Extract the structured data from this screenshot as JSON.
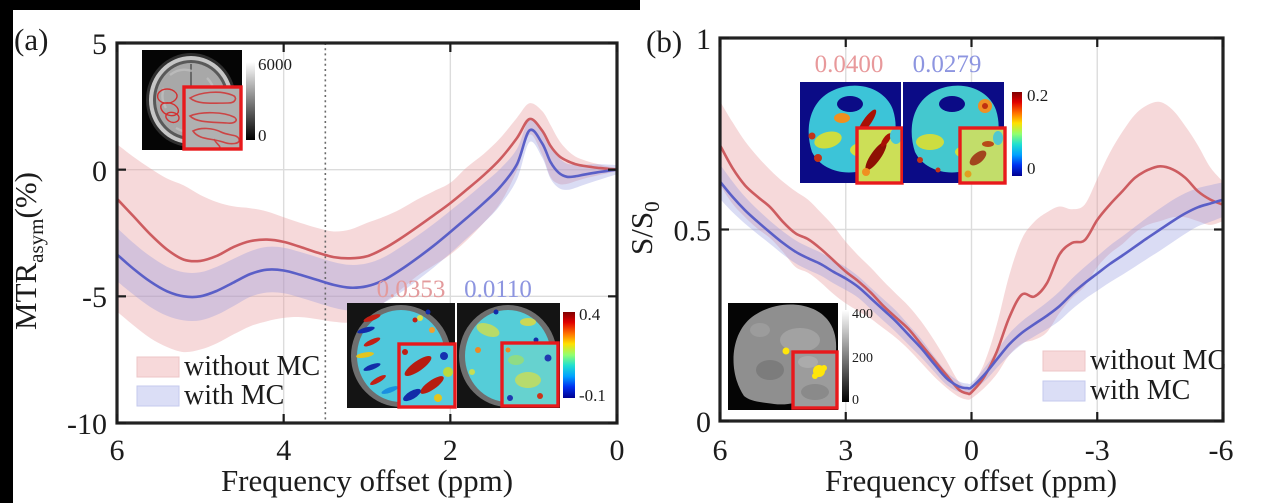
{
  "window": {
    "edge_color": "#000000",
    "background": "#ffffff"
  },
  "chart_data": [
    {
      "type": "line",
      "panel": "a",
      "panel_label": "(a)",
      "xlabel": "Frequency offset (ppm)",
      "ylabel_parts": [
        "MTR",
        "asym",
        "(%)"
      ],
      "x_axis_reversed": true,
      "xlim": [
        6,
        0
      ],
      "ylim": [
        -10,
        5
      ],
      "xticks": [
        6,
        4,
        2,
        0
      ],
      "x_tick_labels": [
        "6",
        "4",
        "2",
        "0"
      ],
      "yticks": [
        5,
        0,
        -5,
        -10
      ],
      "y_tick_labels": [
        "5",
        "0",
        "-5",
        "-10"
      ],
      "grid_x": [
        4,
        2
      ],
      "grid_y": [
        0,
        -5
      ],
      "vline_x": 3.5,
      "legend_position": "bottom-left",
      "series": [
        {
          "name": "without MC",
          "line_color": "#cd5c60",
          "band_color": "#e89c9e",
          "band_opacity": 0.38,
          "x": [
            6,
            5.8,
            5.6,
            5.4,
            5.2,
            5,
            4.8,
            4.6,
            4.4,
            4.2,
            4,
            3.8,
            3.6,
            3.4,
            3.2,
            3,
            2.8,
            2.6,
            2.4,
            2.2,
            2,
            1.8,
            1.6,
            1.4,
            1.2,
            1.05,
            0.9,
            0.8,
            0.7,
            0.6,
            0.5,
            0.4,
            0.3,
            0.2,
            0.1,
            0
          ],
          "mean": [
            -1.15,
            -1.85,
            -2.55,
            -3.15,
            -3.55,
            -3.6,
            -3.4,
            -3.05,
            -2.82,
            -2.76,
            -2.85,
            -3.05,
            -3.27,
            -3.45,
            -3.5,
            -3.42,
            -3.12,
            -2.72,
            -2.27,
            -1.8,
            -1.32,
            -0.78,
            -0.22,
            0.42,
            1.25,
            2.0,
            1.55,
            0.95,
            0.55,
            0.35,
            0.22,
            0.15,
            0.1,
            0.06,
            0.03,
            0.01
          ],
          "hi": [
            1.0,
            0.5,
            0.05,
            -0.35,
            -0.62,
            -1.0,
            -1.28,
            -1.45,
            -1.52,
            -1.65,
            -1.88,
            -2.1,
            -2.3,
            -2.44,
            -2.36,
            -2.1,
            -1.86,
            -1.56,
            -1.18,
            -0.85,
            -0.52,
            0.1,
            0.62,
            1.25,
            2.05,
            2.62,
            2.32,
            1.78,
            1.18,
            0.78,
            0.52,
            0.38,
            0.28,
            0.2,
            0.12,
            0.08
          ],
          "lo": [
            -5.6,
            -6.15,
            -6.65,
            -7.0,
            -7.2,
            -7.1,
            -6.85,
            -6.5,
            -6.18,
            -5.98,
            -5.85,
            -5.82,
            -5.9,
            -6.0,
            -6.02,
            -5.72,
            -5.25,
            -4.75,
            -4.2,
            -3.78,
            -3.35,
            -2.78,
            -2.1,
            -1.32,
            -0.02,
            1.38,
            0.6,
            -0.28,
            -0.56,
            -0.56,
            -0.46,
            -0.36,
            -0.28,
            -0.2,
            -0.13,
            -0.06
          ]
        },
        {
          "name": "with MC",
          "line_color": "#5a5fc7",
          "band_color": "#8c92dd",
          "band_opacity": 0.32,
          "x": [
            6,
            5.8,
            5.6,
            5.4,
            5.2,
            5,
            4.8,
            4.6,
            4.4,
            4.2,
            4,
            3.8,
            3.6,
            3.4,
            3.2,
            3,
            2.8,
            2.6,
            2.4,
            2.2,
            2,
            1.8,
            1.6,
            1.4,
            1.2,
            1.05,
            0.9,
            0.8,
            0.7,
            0.6,
            0.5,
            0.4,
            0.3,
            0.2,
            0.1,
            0
          ],
          "mean": [
            -3.35,
            -3.92,
            -4.42,
            -4.8,
            -5.0,
            -5.0,
            -4.78,
            -4.45,
            -4.12,
            -3.95,
            -3.98,
            -4.15,
            -4.35,
            -4.55,
            -4.66,
            -4.6,
            -4.36,
            -3.96,
            -3.5,
            -3.0,
            -2.46,
            -1.9,
            -1.32,
            -0.68,
            0.22,
            1.55,
            1.05,
            0.32,
            -0.12,
            -0.28,
            -0.26,
            -0.2,
            -0.14,
            -0.09,
            -0.04,
            0
          ],
          "hi": [
            -2.3,
            -2.9,
            -3.42,
            -3.83,
            -4.05,
            -4.05,
            -3.83,
            -3.52,
            -3.22,
            -3.05,
            -3.08,
            -3.25,
            -3.45,
            -3.65,
            -3.76,
            -3.7,
            -3.46,
            -3.06,
            -2.62,
            -2.14,
            -1.62,
            -1.1,
            -0.54,
            0.04,
            0.82,
            2.01,
            1.61,
            0.98,
            0.48,
            0.24,
            0.2,
            0.2,
            0.21,
            0.21,
            0.2,
            0.18
          ],
          "lo": [
            -4.4,
            -4.94,
            -5.42,
            -5.77,
            -5.95,
            -5.95,
            -5.73,
            -5.38,
            -5.02,
            -4.85,
            -4.88,
            -5.05,
            -5.25,
            -5.45,
            -5.56,
            -5.5,
            -5.26,
            -4.86,
            -4.38,
            -3.86,
            -3.3,
            -2.7,
            -2.1,
            -1.4,
            -0.38,
            1.09,
            0.49,
            -0.34,
            -0.72,
            -0.8,
            -0.72,
            -0.6,
            -0.49,
            -0.39,
            -0.28,
            -0.18
          ]
        }
      ],
      "annotations": [
        {
          "text": "0.0353",
          "color": "#e39a9c"
        },
        {
          "text": "0.0110",
          "color": "#8d95e0"
        }
      ],
      "insets": {
        "anatomy_colorbar": {
          "top": "6000",
          "bottom": "0"
        },
        "map_colorbar": {
          "top": "0.4",
          "bottom": "-0.1"
        }
      }
    },
    {
      "type": "line",
      "panel": "b",
      "panel_label": "(b)",
      "xlabel": "Frequency offset (ppm)",
      "ylabel_parts": [
        "S/S",
        "0"
      ],
      "x_axis_reversed": true,
      "xlim": [
        6,
        -6
      ],
      "ylim": [
        0,
        1
      ],
      "xticks": [
        6,
        3,
        0,
        -3,
        -6
      ],
      "x_tick_labels": [
        "6",
        "3",
        "0",
        "-3",
        "-6"
      ],
      "yticks": [
        1,
        0.5,
        0
      ],
      "y_tick_labels": [
        "1",
        "0.5",
        "0"
      ],
      "grid_x": [
        3,
        0,
        -3
      ],
      "grid_y": [
        0.5
      ],
      "vline_x": null,
      "legend_position": "bottom-right",
      "series": [
        {
          "name": "without MC",
          "line_color": "#cd5c60",
          "band_color": "#e89c9e",
          "band_opacity": 0.38,
          "x": [
            6,
            5.7,
            5.4,
            5.1,
            4.8,
            4.5,
            4.2,
            3.9,
            3.6,
            3.3,
            3,
            2.7,
            2.4,
            2.1,
            1.8,
            1.5,
            1.2,
            0.9,
            0.6,
            0.3,
            0.1,
            0,
            -0.3,
            -0.6,
            -0.9,
            -1.2,
            -1.5,
            -1.8,
            -2.1,
            -2.4,
            -2.7,
            -3,
            -3.3,
            -3.6,
            -3.9,
            -4.2,
            -4.5,
            -4.8,
            -5.1,
            -5.4,
            -5.7,
            -6
          ],
          "mean": [
            0.72,
            0.66,
            0.615,
            0.585,
            0.558,
            0.52,
            0.49,
            0.475,
            0.45,
            0.42,
            0.39,
            0.365,
            0.335,
            0.3,
            0.27,
            0.24,
            0.2,
            0.16,
            0.12,
            0.082,
            0.072,
            0.075,
            0.115,
            0.18,
            0.27,
            0.33,
            0.325,
            0.36,
            0.435,
            0.465,
            0.472,
            0.525,
            0.565,
            0.6,
            0.635,
            0.655,
            0.665,
            0.657,
            0.635,
            0.6,
            0.578,
            0.565
          ],
          "hi": [
            0.835,
            0.78,
            0.73,
            0.69,
            0.655,
            0.625,
            0.6,
            0.578,
            0.545,
            0.51,
            0.468,
            0.432,
            0.4,
            0.365,
            0.332,
            0.3,
            0.26,
            0.212,
            0.158,
            0.102,
            0.087,
            0.09,
            0.15,
            0.25,
            0.38,
            0.475,
            0.52,
            0.545,
            0.56,
            0.553,
            0.565,
            0.632,
            0.7,
            0.755,
            0.8,
            0.825,
            0.833,
            0.812,
            0.77,
            0.72,
            0.662,
            0.625
          ],
          "lo": [
            0.617,
            0.567,
            0.532,
            0.502,
            0.477,
            0.442,
            0.402,
            0.387,
            0.362,
            0.332,
            0.307,
            0.287,
            0.267,
            0.242,
            0.217,
            0.187,
            0.152,
            0.117,
            0.087,
            0.063,
            0.056,
            0.059,
            0.086,
            0.122,
            0.172,
            0.202,
            0.212,
            0.232,
            0.282,
            0.322,
            0.352,
            0.402,
            0.437,
            0.462,
            0.492,
            0.512,
            0.522,
            0.532,
            0.532,
            0.522,
            0.512,
            0.522
          ]
        },
        {
          "name": "with MC",
          "line_color": "#5a5fc7",
          "band_color": "#8c92dd",
          "band_opacity": 0.32,
          "x": [
            6,
            5.7,
            5.4,
            5.1,
            4.8,
            4.5,
            4.2,
            3.9,
            3.6,
            3.3,
            3,
            2.7,
            2.4,
            2.1,
            1.8,
            1.5,
            1.2,
            0.9,
            0.6,
            0.3,
            0.1,
            0,
            -0.3,
            -0.6,
            -0.9,
            -1.2,
            -1.5,
            -1.8,
            -2.1,
            -2.4,
            -2.7,
            -3,
            -3.3,
            -3.6,
            -3.9,
            -4.2,
            -4.5,
            -4.8,
            -5.1,
            -5.4,
            -5.7,
            -6
          ],
          "mean": [
            0.625,
            0.585,
            0.55,
            0.52,
            0.492,
            0.465,
            0.442,
            0.425,
            0.41,
            0.39,
            0.372,
            0.35,
            0.32,
            0.29,
            0.26,
            0.225,
            0.19,
            0.15,
            0.112,
            0.09,
            0.086,
            0.088,
            0.12,
            0.16,
            0.2,
            0.23,
            0.253,
            0.275,
            0.3,
            0.332,
            0.36,
            0.385,
            0.41,
            0.432,
            0.455,
            0.478,
            0.5,
            0.522,
            0.542,
            0.558,
            0.568,
            0.578
          ],
          "hi": [
            0.67,
            0.625,
            0.585,
            0.552,
            0.522,
            0.495,
            0.472,
            0.455,
            0.44,
            0.42,
            0.402,
            0.378,
            0.348,
            0.318,
            0.288,
            0.251,
            0.214,
            0.17,
            0.129,
            0.104,
            0.098,
            0.1,
            0.137,
            0.182,
            0.228,
            0.26,
            0.285,
            0.31,
            0.338,
            0.372,
            0.402,
            0.43,
            0.458,
            0.482,
            0.507,
            0.532,
            0.555,
            0.577,
            0.595,
            0.608,
            0.616,
            0.623
          ],
          "lo": [
            0.58,
            0.545,
            0.515,
            0.488,
            0.462,
            0.435,
            0.412,
            0.395,
            0.38,
            0.36,
            0.342,
            0.322,
            0.292,
            0.262,
            0.232,
            0.199,
            0.166,
            0.13,
            0.095,
            0.076,
            0.074,
            0.076,
            0.103,
            0.138,
            0.172,
            0.2,
            0.221,
            0.24,
            0.262,
            0.292,
            0.318,
            0.34,
            0.362,
            0.382,
            0.403,
            0.424,
            0.445,
            0.467,
            0.489,
            0.508,
            0.52,
            0.533
          ]
        }
      ],
      "annotations": [
        {
          "text": "0.0400",
          "color": "#e8999b"
        },
        {
          "text": "0.0279",
          "color": "#8d95e0"
        }
      ],
      "insets": {
        "map_colorbar": {
          "top": "0.2",
          "bottom": "0"
        },
        "anatomy_colorbar": {
          "top": "400",
          "middle": "200",
          "bottom": "0"
        }
      }
    }
  ]
}
